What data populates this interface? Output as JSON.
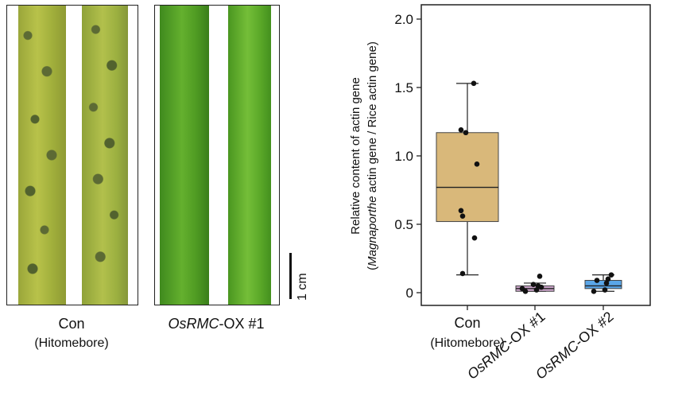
{
  "panels": {
    "left_label": "Con",
    "left_sublabel": "(Hitomebore)",
    "right_label_italic": "OsRMC",
    "right_label_suffix": "-OX #1",
    "scale_bar_label": "1 cm"
  },
  "chart_data": {
    "type": "box",
    "ylabel_line1": "Relative content of actin gene",
    "ylabel_line2_italic": "Magnaporthe",
    "ylabel_line2_rest": " actin gene / Rice actin gene)",
    "ylabel_line2_open": "(",
    "ylim": [
      0,
      2.0
    ],
    "yticks": [
      "0",
      "0.5",
      "1.0",
      "1.5",
      "2.0"
    ],
    "ytick_values": [
      0,
      0.5,
      1.0,
      1.5,
      2.0
    ],
    "categories": [
      {
        "label": "Con",
        "sublabel": "(Hitomebore)",
        "italic": "",
        "suffix": "",
        "color": "#d9b87a"
      },
      {
        "label": "",
        "sublabel": "",
        "italic": "OsRMC",
        "suffix": "-OX #1",
        "color": "#c9a2c8"
      },
      {
        "label": "",
        "sublabel": "",
        "italic": "OsRMC",
        "suffix": "-OX #2",
        "color": "#5aa6e8"
      }
    ],
    "boxes": [
      {
        "min": 0.13,
        "q1": 0.52,
        "median": 0.77,
        "q3": 1.17,
        "max": 1.53
      },
      {
        "min": 0.01,
        "q1": 0.01,
        "median": 0.03,
        "q3": 0.05,
        "max": 0.07
      },
      {
        "min": 0.01,
        "q1": 0.03,
        "median": 0.05,
        "q3": 0.09,
        "max": 0.13
      }
    ],
    "points": [
      [
        1.53,
        1.19,
        1.17,
        0.94,
        0.6,
        0.56,
        0.4,
        0.14
      ],
      [
        0.12,
        0.06,
        0.05,
        0.04,
        0.03,
        0.02,
        0.01
      ],
      [
        0.13,
        0.1,
        0.09,
        0.07,
        0.02,
        0.01
      ]
    ]
  }
}
